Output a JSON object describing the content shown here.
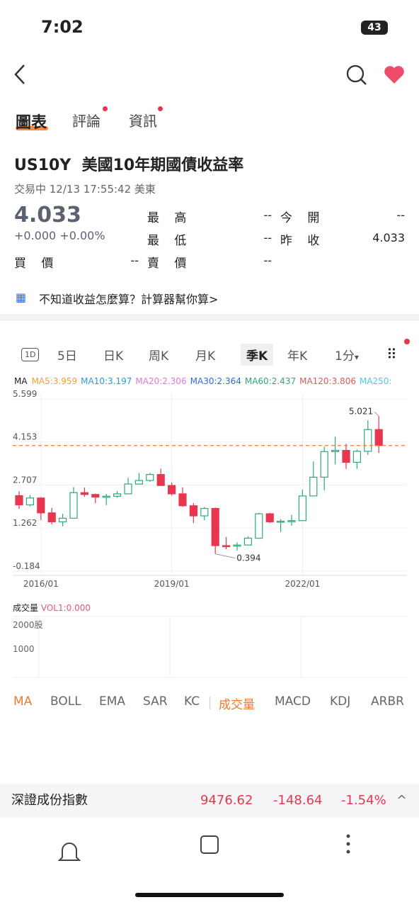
{
  "status": {
    "time": "7:02",
    "battery": "43"
  },
  "tabs": [
    "圖表",
    "評論",
    "資訊"
  ],
  "quote": {
    "symbol": "US10Y",
    "name": "美國10年期國債收益率",
    "state": "交易中 12/13 17:55:42 美東",
    "price": "4.033",
    "change": "+0.000",
    "change_pct": "+0.00%",
    "fields": [
      [
        "最 高",
        "--"
      ],
      [
        "今 開",
        "--"
      ],
      [
        "最 低",
        "--"
      ],
      [
        "昨 收",
        "4.033"
      ],
      [
        "買 價",
        "--"
      ],
      [
        "賣 價",
        "--"
      ]
    ]
  },
  "calculator": "不知道收益怎麼算？計算器幫你算>",
  "periods": [
    "1D",
    "5日",
    "日K",
    "周K",
    "月K",
    "季K",
    "年K",
    "1分"
  ],
  "ma_legend": {
    "title": "MA",
    "items": [
      {
        "text": "MA5:3.959",
        "color": "#f0a030"
      },
      {
        "text": "MA10:3.197",
        "color": "#2a9bd6"
      },
      {
        "text": "MA20:2.306",
        "color": "#d97ad9"
      },
      {
        "text": "MA30:2.364",
        "color": "#2a6bd6"
      },
      {
        "text": "MA60:2.437",
        "color": "#2faa6a"
      },
      {
        "text": "MA120:3.806",
        "color": "#e05a5a"
      },
      {
        "text": "MA250:",
        "color": "#4fc8e0"
      }
    ]
  },
  "chart_data": {
    "type": "candlestick",
    "categories": [
      null,
      null,
      "2016/01",
      null,
      null,
      null,
      null,
      null,
      null,
      null,
      null,
      null,
      null,
      null,
      "2019/01",
      null,
      null,
      null,
      null,
      null,
      null,
      null,
      null,
      null,
      null,
      null,
      "2022/01",
      null,
      null,
      null,
      null,
      null,
      null,
      null
    ],
    "open": [
      2.35,
      2.04,
      2.27,
      1.77,
      1.47,
      1.59,
      2.45,
      2.39,
      2.3,
      2.33,
      2.41,
      2.74,
      2.86,
      3.06,
      2.69,
      2.41,
      2.01,
      1.67,
      1.92,
      0.67,
      0.66,
      0.69,
      0.92,
      1.74,
      1.47,
      1.49,
      1.51,
      2.34,
      2.97,
      3.83,
      3.87,
      3.47,
      3.84,
      4.57
    ],
    "high": [
      2.5,
      2.37,
      2.3,
      1.94,
      1.74,
      2.64,
      2.62,
      2.42,
      2.41,
      2.5,
      2.95,
      3.11,
      3.11,
      3.26,
      2.79,
      2.63,
      2.1,
      1.97,
      1.95,
      0.96,
      0.78,
      0.98,
      1.77,
      1.77,
      1.56,
      1.7,
      2.55,
      3.5,
      4.0,
      4.33,
      4.09,
      3.9,
      4.88,
      5.021
    ],
    "low": [
      1.9,
      1.99,
      1.53,
      1.38,
      1.32,
      1.59,
      2.31,
      2.1,
      2.03,
      2.28,
      2.4,
      2.73,
      2.81,
      2.69,
      2.35,
      1.97,
      1.43,
      1.52,
      0.394,
      0.55,
      0.5,
      0.68,
      0.9,
      1.43,
      1.13,
      1.34,
      1.5,
      2.34,
      2.52,
      3.4,
      3.25,
      3.25,
      3.72,
      3.78
    ],
    "close": [
      2.04,
      2.27,
      1.77,
      1.47,
      1.59,
      2.45,
      2.39,
      2.3,
      2.33,
      2.41,
      2.74,
      2.86,
      3.06,
      2.69,
      2.41,
      2.01,
      1.67,
      1.92,
      0.67,
      0.66,
      0.69,
      0.92,
      1.74,
      1.47,
      1.49,
      1.51,
      2.34,
      2.97,
      3.83,
      3.87,
      3.47,
      3.84,
      4.57,
      4.033
    ],
    "up_color": "#2eaa7a",
    "down_color": "#e8364f",
    "ylim": [
      -0.33,
      5.79
    ],
    "yticks": [
      5.599,
      4.153,
      2.707,
      1.262,
      -0.184
    ],
    "annotations": [
      "5.021",
      "0.394"
    ]
  },
  "volume": {
    "title": "成交量",
    "label": "VOL1:0.000",
    "ticks": [
      "2000股",
      "1000"
    ]
  },
  "indicators": [
    "MA",
    "BOLL",
    "EMA",
    "SAR",
    "KC",
    "成交量",
    "MACD",
    "KDJ",
    "ARBR"
  ],
  "ticker": {
    "name": "深證成份指數",
    "price": "9476.62",
    "change": "-148.64",
    "pct": "-1.54%"
  }
}
